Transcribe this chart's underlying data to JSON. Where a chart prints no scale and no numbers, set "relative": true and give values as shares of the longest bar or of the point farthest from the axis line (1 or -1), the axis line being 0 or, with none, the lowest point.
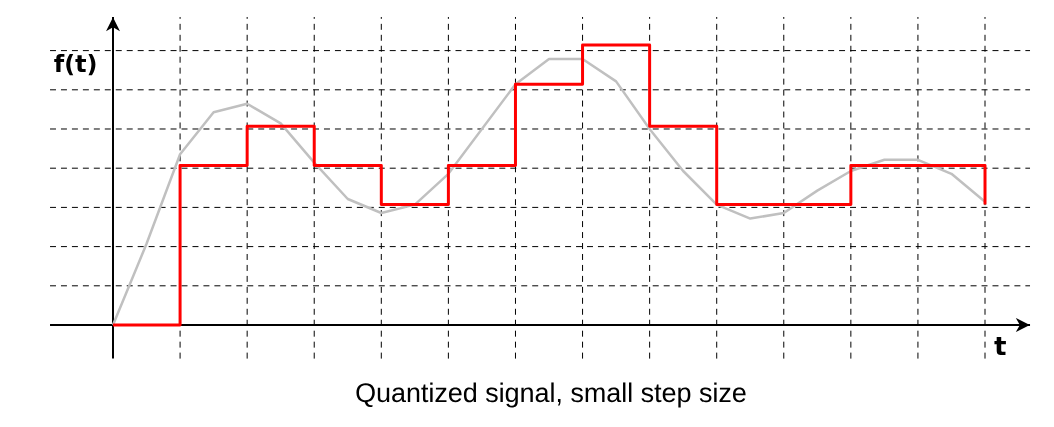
{
  "chart_data": {
    "type": "line",
    "title": "Quantized signal, small step size",
    "xlabel": "t",
    "ylabel": "f(t)",
    "relative": true,
    "grid": true,
    "marker": "none",
    "categories": [
      null,
      null,
      null,
      null,
      null,
      null,
      null,
      null,
      null,
      null,
      null,
      null,
      null,
      null,
      null,
      null,
      null,
      null,
      null,
      null,
      null,
      null,
      null,
      null,
      null,
      null,
      null
    ],
    "series": [
      {
        "color": "#c0c0c0",
        "values": [
          0,
          0.29,
          0.61,
          0.76,
          0.79,
          0.72,
          0.58,
          0.45,
          0.4,
          0.43,
          0.54,
          0.7,
          0.86,
          0.95,
          0.95,
          0.87,
          0.7,
          0.55,
          0.43,
          0.38,
          0.4,
          0.48,
          0.55,
          0.59,
          0.59,
          0.54,
          0.44
        ]
      },
      {
        "type": "step",
        "color": "#ff0000",
        "values": [
          0,
          0,
          0.57,
          0.57,
          0.71,
          0.71,
          0.57,
          0.57,
          0.43,
          0.43,
          0.57,
          0.57,
          0.86,
          0.86,
          1,
          1,
          0.71,
          0.71,
          0.43,
          0.43,
          0.43,
          0.43,
          0.57,
          0.57,
          0.57,
          0.57,
          0.43
        ]
      }
    ]
  }
}
